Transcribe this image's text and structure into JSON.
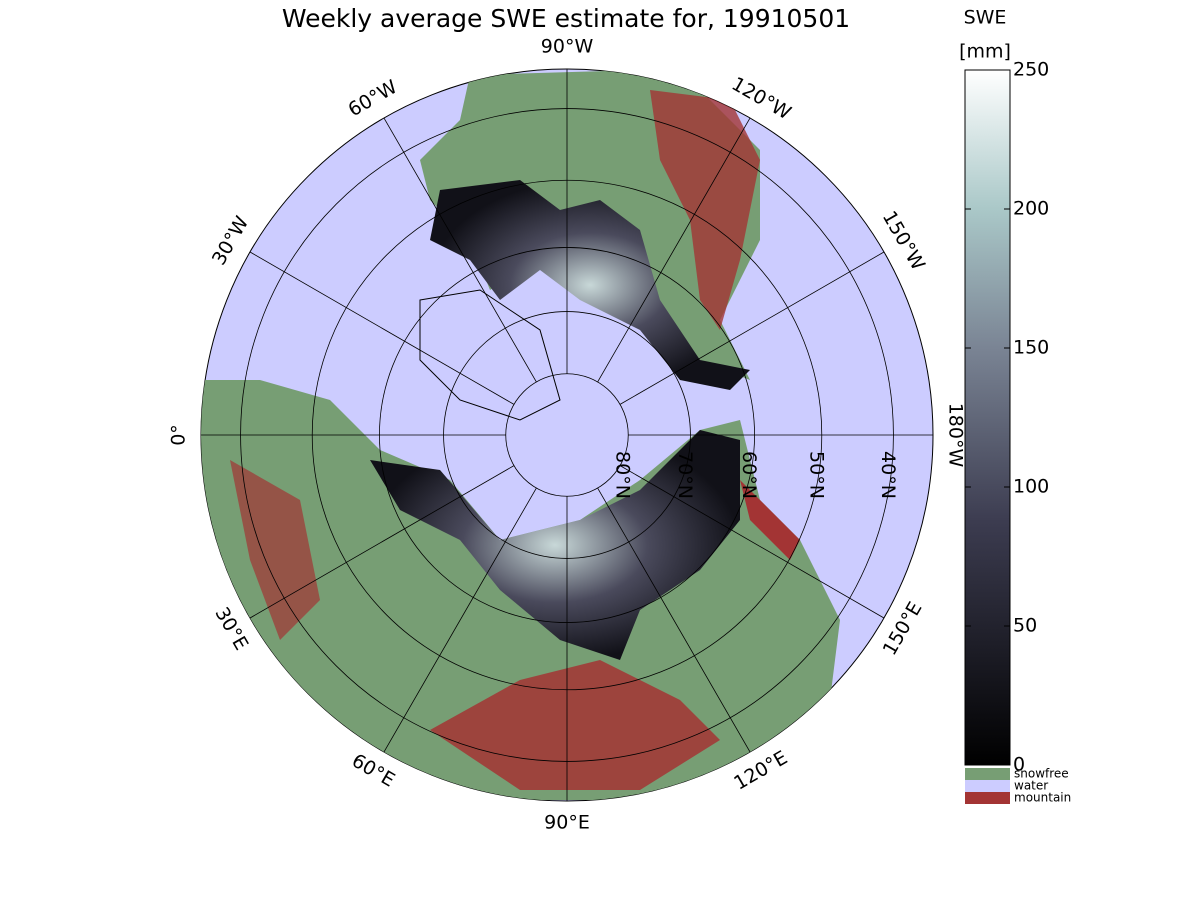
{
  "map": {
    "title": "Weekly average SWE estimate for, 19910501",
    "longitudes": [
      {
        "value": -90,
        "label": "90°W"
      },
      {
        "value": -60,
        "label": "60°W"
      },
      {
        "value": -30,
        "label": "30°W"
      },
      {
        "value": 0,
        "label": "0°"
      },
      {
        "value": 30,
        "label": "30°E"
      },
      {
        "value": 60,
        "label": "60°E"
      },
      {
        "value": 90,
        "label": "90°E"
      },
      {
        "value": 120,
        "label": "120°E"
      },
      {
        "value": 150,
        "label": "150°E"
      },
      {
        "value": 180,
        "label": "180°W"
      },
      {
        "value": -150,
        "label": "150°W"
      },
      {
        "value": -120,
        "label": "120°W"
      }
    ],
    "latitudes": [
      {
        "value": 80,
        "label": "80°N"
      },
      {
        "value": 70,
        "label": "70°N"
      },
      {
        "value": 60,
        "label": "60°N"
      },
      {
        "value": 50,
        "label": "50°N"
      },
      {
        "value": 40,
        "label": "40°N"
      }
    ],
    "colorbar": {
      "label": "SWE",
      "unit": "[mm]",
      "lim": [
        0,
        250
      ],
      "ticks": [
        0,
        50,
        100,
        150,
        200,
        250
      ]
    },
    "legend": [
      {
        "name": "snowfree",
        "color": "#779e74"
      },
      {
        "name": "water",
        "color": "#ccccff"
      },
      {
        "name": "mountain",
        "color": "#a33434"
      }
    ]
  }
}
